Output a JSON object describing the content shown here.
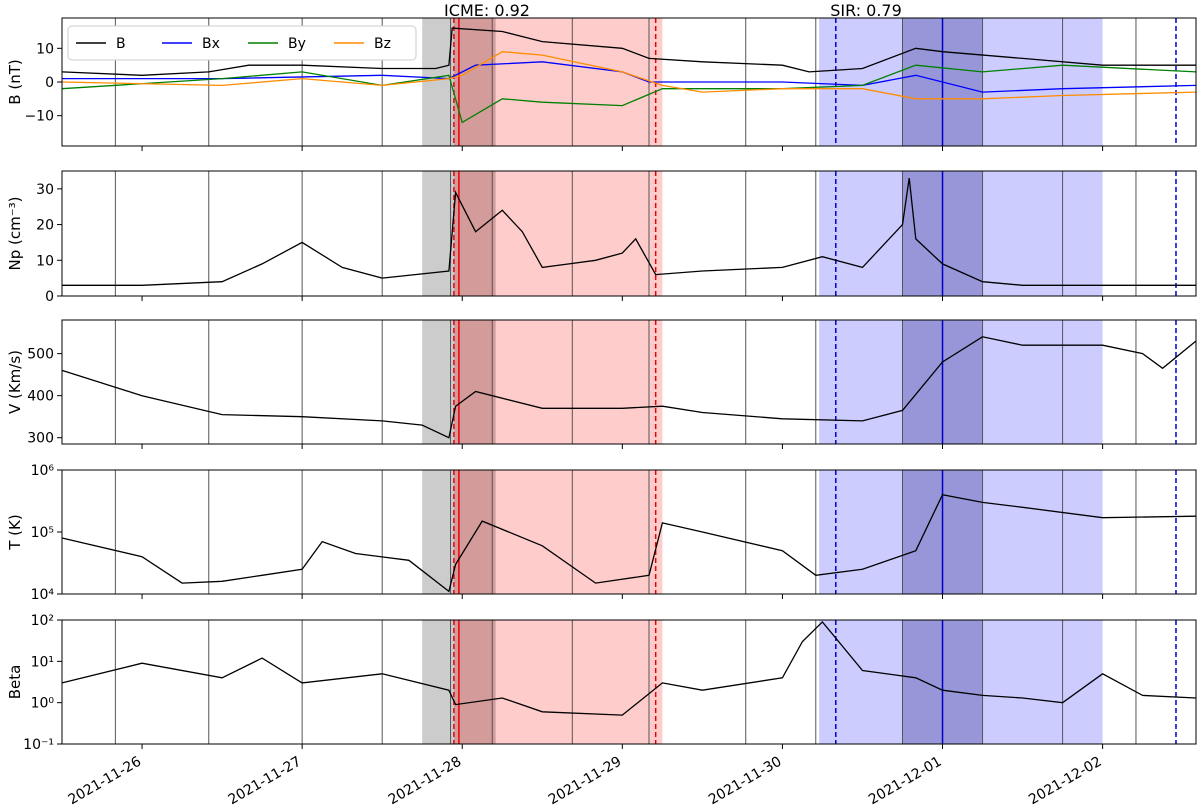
{
  "figure": {
    "annotations": [
      {
        "text": "ICME: 0.92"
      },
      {
        "text": "SIR: 0.79"
      }
    ],
    "x_tick_labels": [
      "2021-11-26",
      "2021-11-27",
      "2021-11-28",
      "2021-11-29",
      "2021-11-30",
      "2021-12-01",
      "2021-12-02"
    ],
    "colors": {
      "icme_fill": "#ff9999",
      "icme_line": "#e8000b",
      "sheath_fill": "#999999",
      "sir_fill": "#9999ff",
      "sir_dark_fill": "#5555aa",
      "sir_line": "#0000cc",
      "grid_line": "#000000"
    }
  },
  "chart_data": [
    {
      "type": "line",
      "ylabel": "B (nT)",
      "ylim": [
        -19,
        19
      ],
      "yticks": [
        -10,
        0,
        10
      ],
      "ytick_labels": [
        "−10",
        "0",
        "10"
      ],
      "legend": {
        "placement": "top-left",
        "entries": [
          "B",
          "Bx",
          "By",
          "Bz"
        ]
      },
      "x_start": "2021-11-25T12:00",
      "x_end": "2021-12-02T14:00",
      "series": [
        {
          "name": "B",
          "color": "#000000",
          "x": [
            "2021-11-25T12:00",
            "2021-11-26T00:00",
            "2021-11-26T10:00",
            "2021-11-26T16:00",
            "2021-11-27T00:00",
            "2021-11-27T12:00",
            "2021-11-27T20:00",
            "2021-11-27T22:00",
            "2021-11-27T22:30",
            "2021-11-28T06:00",
            "2021-11-28T12:00",
            "2021-11-29T00:00",
            "2021-11-29T04:00",
            "2021-11-29T12:00",
            "2021-11-30T00:00",
            "2021-11-30T04:00",
            "2021-11-30T12:00",
            "2021-11-30T20:00",
            "2021-12-01T00:00",
            "2021-12-01T12:00",
            "2021-12-02T00:00",
            "2021-12-02T14:00"
          ],
          "values": [
            3,
            2,
            3,
            5,
            5,
            4,
            4,
            5,
            16,
            15,
            12,
            10,
            7,
            6,
            5,
            3,
            4,
            10,
            9,
            7,
            5,
            5
          ]
        },
        {
          "name": "Bx",
          "color": "#0000ff",
          "x": [
            "2021-11-25T12:00",
            "2021-11-26T12:00",
            "2021-11-27T12:00",
            "2021-11-27T22:00",
            "2021-11-28T02:00",
            "2021-11-28T12:00",
            "2021-11-29T00:00",
            "2021-11-29T04:00",
            "2021-11-29T12:00",
            "2021-11-30T00:00",
            "2021-11-30T12:00",
            "2021-11-30T20:00",
            "2021-12-01T06:00",
            "2021-12-01T18:00",
            "2021-12-02T14:00"
          ],
          "values": [
            1,
            1,
            2,
            1,
            5,
            6,
            3,
            0,
            0,
            0,
            -1,
            2,
            -3,
            -2,
            -1
          ]
        },
        {
          "name": "By",
          "color": "#008000",
          "x": [
            "2021-11-25T12:00",
            "2021-11-26T12:00",
            "2021-11-27T00:00",
            "2021-11-27T12:00",
            "2021-11-27T22:00",
            "2021-11-28T00:00",
            "2021-11-28T06:00",
            "2021-11-28T12:00",
            "2021-11-29T00:00",
            "2021-11-29T06:00",
            "2021-11-29T12:00",
            "2021-11-30T00:00",
            "2021-11-30T12:00",
            "2021-11-30T20:00",
            "2021-12-01T06:00",
            "2021-12-01T18:00",
            "2021-12-02T14:00"
          ],
          "values": [
            -2,
            1,
            3,
            -1,
            2,
            -12,
            -5,
            -6,
            -7,
            -2,
            -2,
            -2,
            -1,
            5,
            3,
            5,
            3
          ]
        },
        {
          "name": "Bz",
          "color": "#ff8c00",
          "x": [
            "2021-11-25T12:00",
            "2021-11-26T12:00",
            "2021-11-27T00:00",
            "2021-11-27T12:00",
            "2021-11-27T22:00",
            "2021-11-28T00:00",
            "2021-11-28T06:00",
            "2021-11-28T12:00",
            "2021-11-29T00:00",
            "2021-11-29T06:00",
            "2021-11-29T12:00",
            "2021-11-30T00:00",
            "2021-11-30T12:00",
            "2021-11-30T20:00",
            "2021-12-01T06:00",
            "2021-12-01T18:00",
            "2021-12-02T14:00"
          ],
          "values": [
            0,
            -1,
            1,
            -1,
            1,
            2,
            9,
            8,
            3,
            -1,
            -3,
            -2,
            -2,
            -5,
            -5,
            -4,
            -3
          ]
        }
      ],
      "regions": [
        {
          "kind": "sheath",
          "x0": "2021-11-27T18:00",
          "x1": "2021-11-27T22:45"
        },
        {
          "kind": "icme",
          "x0": "2021-11-27T22:45",
          "x1": "2021-11-29T06:00"
        },
        {
          "kind": "sir",
          "x0": "2021-11-30T05:30",
          "x1": "2021-12-02T00:00"
        },
        {
          "kind": "sir_dark",
          "x0": "2021-11-30T18:00",
          "x1": "2021-12-01T06:00"
        }
      ]
    },
    {
      "type": "line",
      "ylabel": "Np (cm⁻³)",
      "ylim": [
        0,
        35
      ],
      "yticks": [
        0,
        10,
        20,
        30
      ],
      "ytick_labels": [
        "0",
        "10",
        "20",
        "30"
      ],
      "series": [
        {
          "name": "Np",
          "color": "#000000",
          "x": [
            "2021-11-25T12:00",
            "2021-11-26T00:00",
            "2021-11-26T12:00",
            "2021-11-26T18:00",
            "2021-11-27T00:00",
            "2021-11-27T06:00",
            "2021-11-27T12:00",
            "2021-11-27T22:00",
            "2021-11-27T23:00",
            "2021-11-28T02:00",
            "2021-11-28T06:00",
            "2021-11-28T09:00",
            "2021-11-28T12:00",
            "2021-11-28T16:00",
            "2021-11-28T20:00",
            "2021-11-29T00:00",
            "2021-11-29T02:00",
            "2021-11-29T05:00",
            "2021-11-29T12:00",
            "2021-11-30T00:00",
            "2021-11-30T06:00",
            "2021-11-30T12:00",
            "2021-11-30T18:00",
            "2021-11-30T19:00",
            "2021-11-30T20:00",
            "2021-12-01T00:00",
            "2021-12-01T06:00",
            "2021-12-01T12:00",
            "2021-12-01T18:00",
            "2021-12-02T00:00",
            "2021-12-02T14:00"
          ],
          "values": [
            3,
            3,
            4,
            9,
            15,
            8,
            5,
            7,
            29,
            18,
            24,
            18,
            8,
            9,
            10,
            12,
            16,
            6,
            7,
            8,
            11,
            8,
            20,
            33,
            16,
            9,
            4,
            3,
            3,
            3,
            3
          ]
        }
      ]
    },
    {
      "type": "line",
      "ylabel": "V (Km/s)",
      "ylim": [
        285,
        580
      ],
      "yticks": [
        300,
        400,
        500
      ],
      "ytick_labels": [
        "300",
        "400",
        "500"
      ],
      "series": [
        {
          "name": "V",
          "color": "#000000",
          "x": [
            "2021-11-25T12:00",
            "2021-11-26T00:00",
            "2021-11-26T12:00",
            "2021-11-27T00:00",
            "2021-11-27T12:00",
            "2021-11-27T18:00",
            "2021-11-27T22:00",
            "2021-11-27T23:00",
            "2021-11-28T02:00",
            "2021-11-28T12:00",
            "2021-11-29T00:00",
            "2021-11-29T06:00",
            "2021-11-29T12:00",
            "2021-11-30T00:00",
            "2021-11-30T12:00",
            "2021-11-30T18:00",
            "2021-12-01T00:00",
            "2021-12-01T06:00",
            "2021-12-01T12:00",
            "2021-12-02T00:00",
            "2021-12-02T06:00",
            "2021-12-02T09:00",
            "2021-12-02T14:00"
          ],
          "values": [
            460,
            400,
            355,
            350,
            340,
            330,
            300,
            375,
            410,
            370,
            370,
            375,
            360,
            345,
            340,
            365,
            480,
            540,
            520,
            520,
            500,
            465,
            530
          ]
        }
      ]
    },
    {
      "type": "line",
      "ylabel": "T (K)",
      "yscale": "log",
      "ylim": [
        10000,
        1000000
      ],
      "yticks": [
        10000,
        100000,
        1000000
      ],
      "ytick_labels": [
        "10⁴",
        "10⁵",
        "10⁶"
      ],
      "series": [
        {
          "name": "T",
          "color": "#000000",
          "x": [
            "2021-11-25T12:00",
            "2021-11-26T00:00",
            "2021-11-26T06:00",
            "2021-11-26T12:00",
            "2021-11-26T18:00",
            "2021-11-27T00:00",
            "2021-11-27T03:00",
            "2021-11-27T08:00",
            "2021-11-27T16:00",
            "2021-11-27T22:00",
            "2021-11-27T23:00",
            "2021-11-28T03:00",
            "2021-11-28T12:00",
            "2021-11-28T20:00",
            "2021-11-29T04:00",
            "2021-11-29T06:00",
            "2021-11-29T12:00",
            "2021-11-30T00:00",
            "2021-11-30T05:00",
            "2021-11-30T12:00",
            "2021-11-30T20:00",
            "2021-12-01T00:00",
            "2021-12-01T06:00",
            "2021-12-01T12:00",
            "2021-12-02T00:00",
            "2021-12-02T14:00"
          ],
          "values": [
            80000,
            40000,
            15000,
            16000,
            20000,
            25000,
            70000,
            45000,
            35000,
            11000,
            30000,
            150000,
            60000,
            15000,
            20000,
            140000,
            100000,
            50000,
            20000,
            25000,
            50000,
            400000,
            300000,
            250000,
            170000,
            180000
          ]
        }
      ]
    },
    {
      "type": "line",
      "ylabel": "Beta",
      "yscale": "log",
      "ylim": [
        0.1,
        100
      ],
      "yticks": [
        0.1,
        1,
        10,
        100
      ],
      "ytick_labels": [
        "10⁻¹",
        "10⁰",
        "10¹",
        "10²"
      ],
      "series": [
        {
          "name": "Beta",
          "color": "#000000",
          "x": [
            "2021-11-25T12:00",
            "2021-11-26T00:00",
            "2021-11-26T12:00",
            "2021-11-26T18:00",
            "2021-11-27T00:00",
            "2021-11-27T12:00",
            "2021-11-27T22:00",
            "2021-11-27T23:00",
            "2021-11-28T06:00",
            "2021-11-28T12:00",
            "2021-11-29T00:00",
            "2021-11-29T06:00",
            "2021-11-29T12:00",
            "2021-11-30T00:00",
            "2021-11-30T03:00",
            "2021-11-30T06:00",
            "2021-11-30T12:00",
            "2021-11-30T20:00",
            "2021-12-01T00:00",
            "2021-12-01T06:00",
            "2021-12-01T12:00",
            "2021-12-01T18:00",
            "2021-12-02T00:00",
            "2021-12-02T06:00",
            "2021-12-02T14:00"
          ],
          "values": [
            3,
            9,
            4,
            12,
            3,
            5,
            2,
            0.9,
            1.3,
            0.6,
            0.5,
            3,
            2,
            4,
            30,
            90,
            6,
            4,
            2,
            1.5,
            1.3,
            1,
            5,
            1.5,
            1.3
          ]
        }
      ]
    }
  ]
}
